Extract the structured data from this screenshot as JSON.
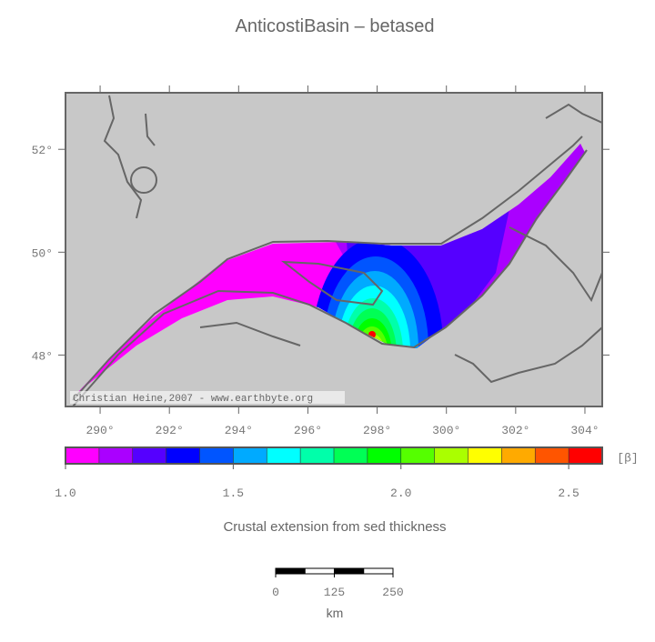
{
  "title": "AnticostiBasin – betased",
  "credit": "Christian Heine,2007 - www.earthbyte.org",
  "map": {
    "xlim": [
      289,
      304.5
    ],
    "ylim": [
      47,
      53.1
    ],
    "xticks": [
      {
        "value": 290,
        "label": "290°"
      },
      {
        "value": 292,
        "label": "292°"
      },
      {
        "value": 294,
        "label": "294°"
      },
      {
        "value": 296,
        "label": "296°"
      },
      {
        "value": 298,
        "label": "298°"
      },
      {
        "value": 300,
        "label": "300°"
      },
      {
        "value": 302,
        "label": "302°"
      },
      {
        "value": 304,
        "label": "304°"
      }
    ],
    "yticks": [
      {
        "value": 48,
        "label": "48°"
      },
      {
        "value": 50,
        "label": "50°"
      },
      {
        "value": 52,
        "label": "52°"
      }
    ]
  },
  "colorbar": {
    "lim": [
      1.0,
      2.6
    ],
    "colors": [
      "#ff00ff",
      "#aa00ff",
      "#5500ff",
      "#0000ff",
      "#0055ff",
      "#00aaff",
      "#00ffff",
      "#00ffaa",
      "#00ff55",
      "#00ff00",
      "#55ff00",
      "#aaff00",
      "#ffff00",
      "#ffaa00",
      "#ff5500",
      "#ff0000"
    ],
    "ticks": [
      {
        "value": 1,
        "label": "1.0"
      },
      1.5,
      {
        "value": 2,
        "label": "2.0"
      },
      2.5
    ],
    "unit": "[β]",
    "label": "Crustal extension from sed thickness"
  },
  "scalebar": {
    "lim": [
      0,
      250
    ],
    "ticks": [
      0,
      125,
      250
    ],
    "unit": "km"
  }
}
